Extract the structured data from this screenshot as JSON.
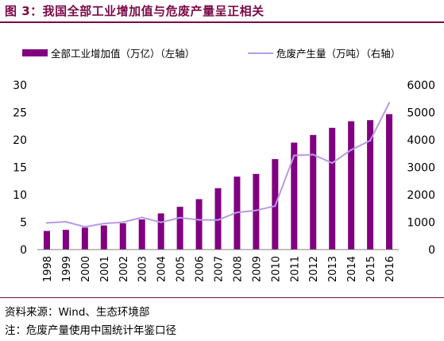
{
  "header": {
    "title": "图 3：我国全部工业增加值与危废产量呈正相关"
  },
  "chart_data": {
    "type": "bar+line",
    "categories": [
      "1998",
      "1999",
      "2000",
      "2001",
      "2002",
      "2003",
      "2004",
      "2005",
      "2006",
      "2007",
      "2008",
      "2009",
      "2010",
      "2011",
      "2012",
      "2013",
      "2014",
      "2015",
      "2016"
    ],
    "series": [
      {
        "name": "全部工业增加值（万亿）（左轴）",
        "type": "bar",
        "axis": "left",
        "color": "#800080",
        "values": [
          3.4,
          3.6,
          4.0,
          4.4,
          4.8,
          5.5,
          6.6,
          7.8,
          9.2,
          11.2,
          13.3,
          13.8,
          16.5,
          19.5,
          20.9,
          22.2,
          23.4,
          23.6,
          24.7
        ]
      },
      {
        "name": "危废产生量（万吨）（右轴）",
        "type": "line",
        "axis": "right",
        "color": "#b79be5",
        "values": [
          974,
          1015,
          830,
          952,
          1000,
          1171,
          995,
          1162,
          1084,
          1079,
          1357,
          1430,
          1587,
          3431,
          3465,
          3157,
          3634,
          3976,
          5347
        ]
      }
    ],
    "y_left": {
      "min": 0,
      "max": 30,
      "ticks": [
        0,
        5,
        10,
        15,
        20,
        25,
        30
      ]
    },
    "y_right": {
      "min": 0,
      "max": 6000,
      "ticks": [
        0,
        1000,
        2000,
        3000,
        4000,
        5000,
        6000
      ]
    },
    "legend": "top"
  },
  "notes": {
    "source": "资料来源：Wind、生态环境部",
    "footnote": "注：危废产量使用中国统计年鉴口径"
  }
}
